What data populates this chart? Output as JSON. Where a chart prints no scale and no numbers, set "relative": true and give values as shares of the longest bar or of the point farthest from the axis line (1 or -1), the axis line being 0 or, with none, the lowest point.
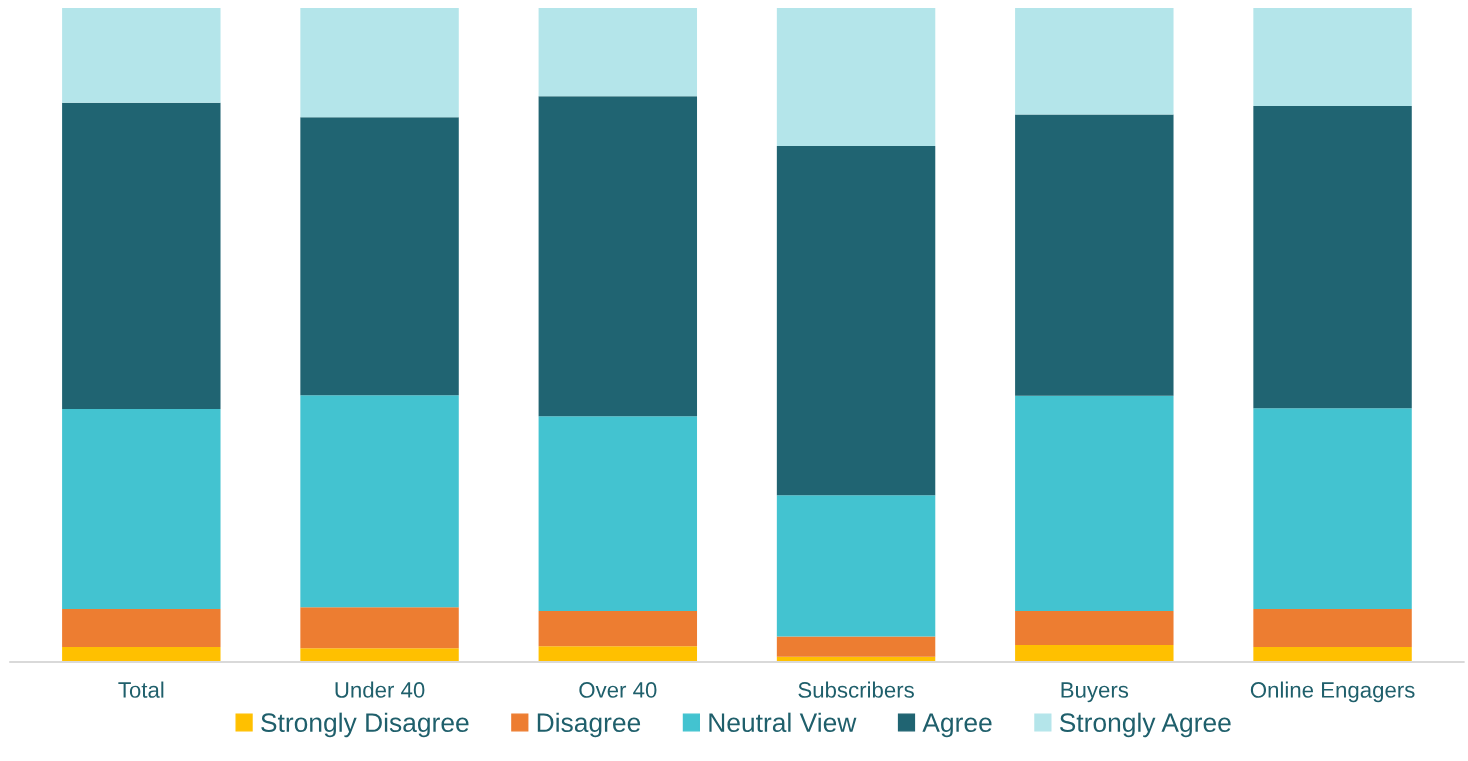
{
  "chart_data": {
    "type": "bar",
    "stacked": true,
    "relative": true,
    "legend": "bottom",
    "grid": false,
    "categories": [
      "Total",
      "Under 40",
      "Over 40",
      "Subscribers",
      "Buyers",
      "Online Engagers"
    ],
    "series": [
      {
        "name": "Strongly Disagree",
        "color": "#ffc000",
        "values": [
          0.023,
          0.021,
          0.024,
          0.008,
          0.026,
          0.023
        ]
      },
      {
        "name": "Disagree",
        "color": "#ed7d31",
        "values": [
          0.058,
          0.063,
          0.054,
          0.031,
          0.052,
          0.058
        ]
      },
      {
        "name": "Neutral View",
        "color": "#43c3d0",
        "values": [
          0.306,
          0.324,
          0.298,
          0.216,
          0.329,
          0.307
        ]
      },
      {
        "name": "Agree",
        "color": "#206472",
        "values": [
          0.468,
          0.425,
          0.489,
          0.534,
          0.43,
          0.462
        ]
      },
      {
        "name": "Strongly Agree",
        "color": "#b4e5ea",
        "values": [
          0.145,
          0.167,
          0.135,
          0.211,
          0.163,
          0.15
        ]
      }
    ]
  }
}
